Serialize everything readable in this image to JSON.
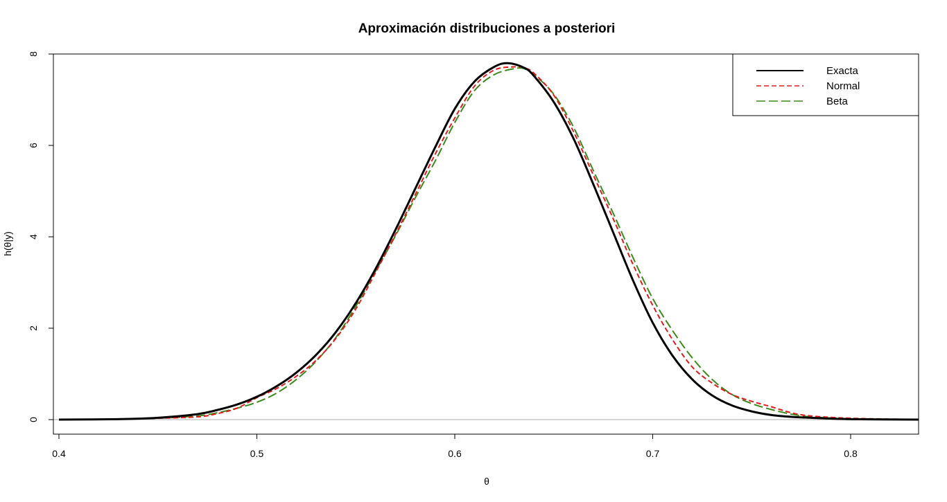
{
  "chart_data": {
    "type": "line",
    "title": "Aproximación distribuciones a posteriori",
    "xlabel": "θ",
    "ylabel": "h(θ|y)",
    "xlim": [
      0.4,
      0.835
    ],
    "ylim": [
      0,
      8
    ],
    "x_ticks": [
      0.4,
      0.5,
      0.6,
      0.7,
      0.8
    ],
    "x_tick_labels": [
      "0.4",
      "0.5",
      "0.6",
      "0.7",
      "0.8"
    ],
    "y_ticks": [
      0,
      2,
      4,
      6,
      8
    ],
    "y_tick_labels": [
      "0",
      "2",
      "4",
      "6",
      "8"
    ],
    "reference_line": {
      "y": 0,
      "color": "#bebebe"
    },
    "grid": false,
    "legend_position": "top-right",
    "series": [
      {
        "name": "Exacta",
        "color": "#000000",
        "style": "solid",
        "x": [
          0.4,
          0.43,
          0.45,
          0.47,
          0.48,
          0.49,
          0.5,
          0.51,
          0.52,
          0.53,
          0.54,
          0.55,
          0.56,
          0.57,
          0.58,
          0.59,
          0.6,
          0.61,
          0.62,
          0.627,
          0.635,
          0.64,
          0.65,
          0.66,
          0.67,
          0.68,
          0.69,
          0.7,
          0.71,
          0.72,
          0.73,
          0.74,
          0.75,
          0.76,
          0.77,
          0.78,
          0.8,
          0.835
        ],
        "y": [
          0.0,
          0.01,
          0.04,
          0.12,
          0.21,
          0.33,
          0.5,
          0.73,
          1.03,
          1.42,
          1.92,
          2.55,
          3.3,
          4.15,
          5.05,
          5.95,
          6.8,
          7.4,
          7.72,
          7.8,
          7.7,
          7.52,
          6.95,
          6.15,
          5.15,
          4.1,
          3.05,
          2.12,
          1.4,
          0.88,
          0.53,
          0.31,
          0.18,
          0.1,
          0.06,
          0.04,
          0.01,
          0.0
        ]
      },
      {
        "name": "Normal",
        "color": "#e41a1c",
        "style": "dashed",
        "x": [
          0.4,
          0.43,
          0.45,
          0.47,
          0.48,
          0.49,
          0.5,
          0.51,
          0.52,
          0.53,
          0.54,
          0.55,
          0.56,
          0.57,
          0.58,
          0.59,
          0.6,
          0.61,
          0.62,
          0.63,
          0.635,
          0.64,
          0.65,
          0.66,
          0.67,
          0.68,
          0.69,
          0.7,
          0.71,
          0.72,
          0.73,
          0.74,
          0.75,
          0.76,
          0.77,
          0.78,
          0.8,
          0.835
        ],
        "y": [
          0.0,
          0.01,
          0.03,
          0.06,
          0.13,
          0.25,
          0.48,
          0.68,
          0.95,
          1.3,
          1.78,
          2.42,
          3.22,
          4.05,
          4.92,
          5.8,
          6.6,
          7.3,
          7.65,
          7.72,
          7.7,
          7.58,
          7.1,
          6.3,
          5.35,
          4.4,
          3.4,
          2.5,
          1.75,
          1.15,
          0.8,
          0.55,
          0.4,
          0.28,
          0.15,
          0.08,
          0.03,
          0.0
        ]
      },
      {
        "name": "Beta",
        "color": "#3a8a1a",
        "style": "longdash",
        "x": [
          0.4,
          0.43,
          0.45,
          0.47,
          0.48,
          0.49,
          0.5,
          0.51,
          0.52,
          0.53,
          0.54,
          0.55,
          0.56,
          0.57,
          0.58,
          0.59,
          0.6,
          0.61,
          0.62,
          0.63,
          0.635,
          0.64,
          0.65,
          0.66,
          0.67,
          0.68,
          0.69,
          0.7,
          0.71,
          0.72,
          0.73,
          0.74,
          0.75,
          0.76,
          0.77,
          0.78,
          0.8,
          0.835
        ],
        "y": [
          0.0,
          0.01,
          0.03,
          0.08,
          0.15,
          0.25,
          0.38,
          0.58,
          0.88,
          1.28,
          1.8,
          2.48,
          3.25,
          4.02,
          4.85,
          5.65,
          6.5,
          7.2,
          7.55,
          7.68,
          7.68,
          7.55,
          7.12,
          6.4,
          5.45,
          4.52,
          3.55,
          2.65,
          1.95,
          1.35,
          0.88,
          0.55,
          0.35,
          0.22,
          0.12,
          0.06,
          0.02,
          0.0
        ]
      }
    ]
  }
}
